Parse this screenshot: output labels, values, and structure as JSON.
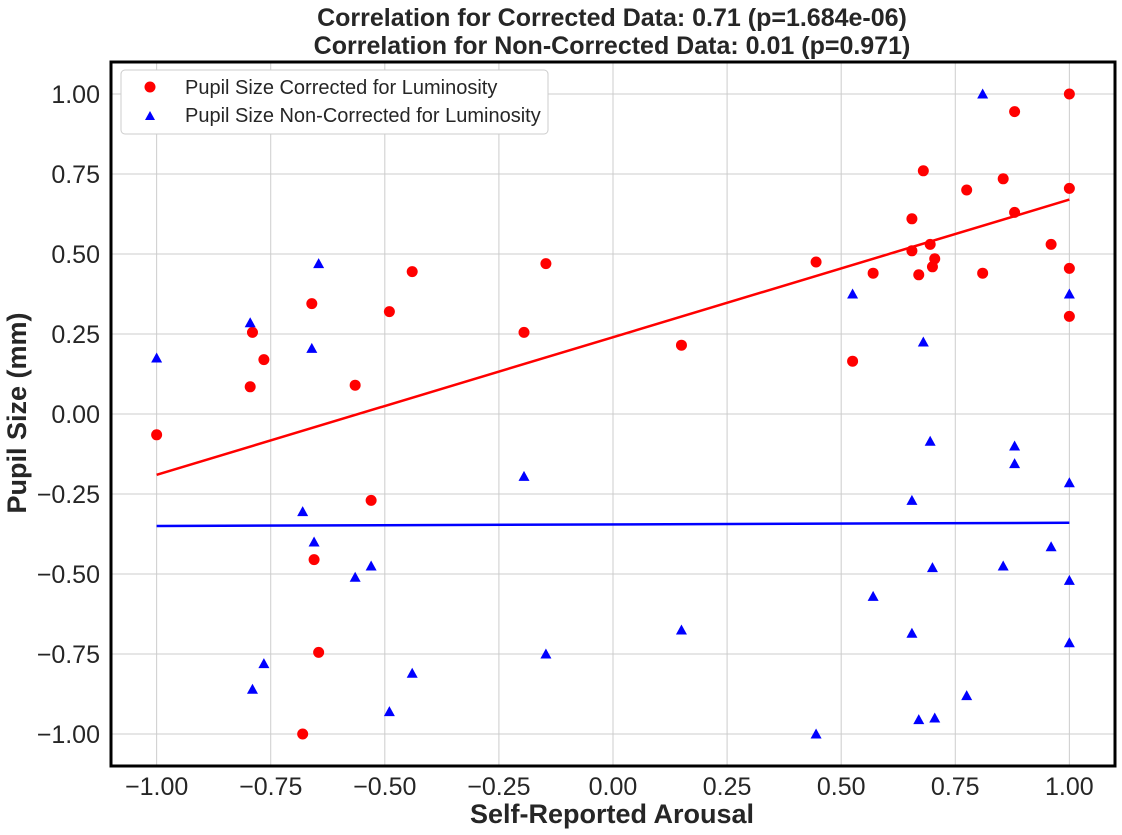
{
  "chart_data": {
    "type": "scatter",
    "title_lines": [
      "Correlation for Corrected Data: 0.71 (p=1.684e-06)",
      "Correlation for Non-Corrected Data: 0.01 (p=0.971)"
    ],
    "xlabel": "Self-Reported Arousal",
    "ylabel": "Pupil Size (mm)",
    "xlim": [
      -1.1,
      1.1
    ],
    "ylim": [
      -1.1,
      1.1
    ],
    "xticks": [
      -1.0,
      -0.75,
      -0.5,
      -0.25,
      0.0,
      0.25,
      0.5,
      0.75,
      1.0
    ],
    "xtick_labels": [
      "−1.00",
      "−0.75",
      "−0.50",
      "−0.25",
      "0.00",
      "0.25",
      "0.50",
      "0.75",
      "1.00"
    ],
    "yticks": [
      1.0,
      0.75,
      0.5,
      0.25,
      0.0,
      -0.25,
      -0.5,
      -0.75,
      -1.0
    ],
    "ytick_labels": [
      "1.00",
      "0.75",
      "0.50",
      "0.25",
      "0.00",
      "−0.25",
      "−0.50",
      "−0.75",
      "−1.00"
    ],
    "grid": true,
    "legend_position": "upper-left",
    "series": [
      {
        "name": "Pupil Size Corrected for Luminosity",
        "marker": "circle",
        "color": "#ff0000",
        "x": [
          -1.0,
          -0.795,
          -0.79,
          -0.765,
          -0.68,
          -0.66,
          -0.655,
          -0.645,
          -0.565,
          -0.53,
          -0.49,
          -0.44,
          -0.195,
          -0.147,
          0.15,
          0.445,
          0.525,
          0.57,
          0.655,
          0.655,
          0.67,
          0.68,
          0.695,
          0.7,
          0.705,
          0.775,
          0.81,
          0.855,
          0.88,
          0.88,
          0.96,
          1.0,
          1.0,
          1.0,
          1.0
        ],
        "y": [
          -0.065,
          0.085,
          0.255,
          0.17,
          -1.0,
          0.345,
          -0.455,
          -0.745,
          0.09,
          -0.27,
          0.32,
          0.445,
          0.255,
          0.47,
          0.215,
          0.475,
          0.165,
          0.44,
          0.61,
          0.51,
          0.435,
          0.76,
          0.53,
          0.46,
          0.485,
          0.7,
          0.44,
          0.735,
          0.63,
          0.945,
          0.53,
          1.0,
          0.705,
          0.455,
          0.305
        ]
      },
      {
        "name": "Pupil Size Non-Corrected for Luminosity",
        "marker": "triangle",
        "color": "#0000ff",
        "x": [
          -1.0,
          -0.795,
          -0.79,
          -0.765,
          -0.68,
          -0.66,
          -0.655,
          -0.645,
          -0.565,
          -0.53,
          -0.49,
          -0.44,
          -0.195,
          -0.147,
          0.15,
          0.445,
          0.525,
          0.57,
          0.655,
          0.655,
          0.67,
          0.68,
          0.695,
          0.7,
          0.705,
          0.775,
          0.81,
          0.855,
          0.88,
          0.88,
          0.96,
          1.0,
          1.0,
          1.0,
          1.0
        ],
        "y": [
          0.175,
          0.285,
          -0.86,
          -0.78,
          -0.305,
          0.205,
          -0.4,
          0.47,
          -0.51,
          -0.475,
          -0.93,
          -0.81,
          -0.195,
          -0.75,
          -0.675,
          -1.0,
          0.375,
          -0.57,
          -0.27,
          -0.685,
          -0.955,
          0.225,
          -0.085,
          -0.48,
          -0.95,
          -0.88,
          1.0,
          -0.475,
          -0.155,
          -0.1,
          -0.415,
          0.375,
          -0.215,
          -0.52,
          -0.715
        ]
      }
    ],
    "fit_lines": [
      {
        "name": "Corrected fit",
        "color": "#ff0000",
        "x": [
          -1.0,
          1.0
        ],
        "y": [
          -0.19,
          0.67
        ]
      },
      {
        "name": "Non-corrected fit",
        "color": "#0000ff",
        "x": [
          -1.0,
          1.0
        ],
        "y": [
          -0.35,
          -0.34
        ]
      }
    ]
  }
}
